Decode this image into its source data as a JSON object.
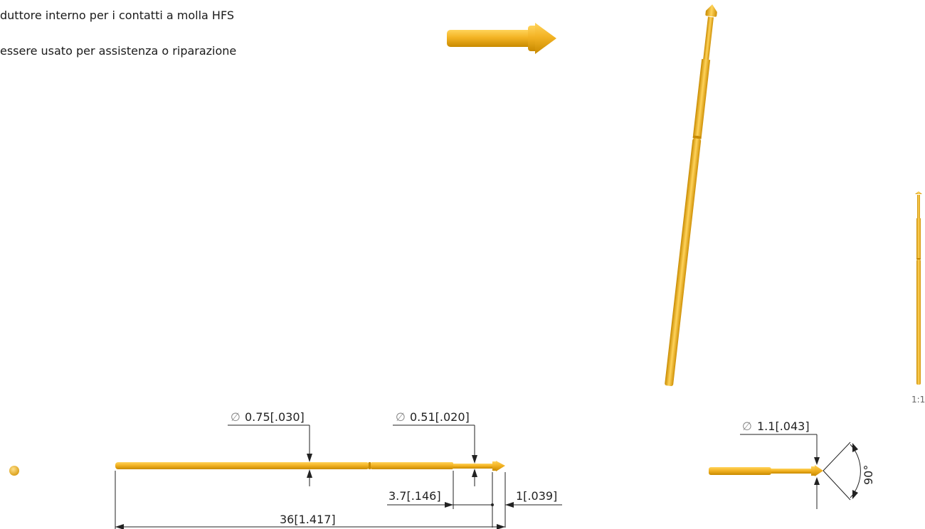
{
  "description": {
    "line1": "duttore interno per i contatti a molla HFS",
    "line2": "essere usato per assistenza o riparazione"
  },
  "drawing": {
    "scale": "1:1",
    "colors": {
      "pin": "#f0b21e",
      "pin_dark": "#cf8f00",
      "pin_light": "#ffd35a",
      "line": "#222222"
    },
    "dimensions": {
      "diam_body": {
        "symbol": "∅",
        "text": "0.75[.030]"
      },
      "diam_tip_shaft": {
        "symbol": "∅",
        "text": "0.51[.020]"
      },
      "len_step": "3.7[.146]",
      "len_tip": "1[.039]",
      "len_total": "36[1.417]",
      "diam_head": {
        "symbol": "∅",
        "text": "1.1[.043]"
      },
      "angle_tip": "90°"
    }
  }
}
